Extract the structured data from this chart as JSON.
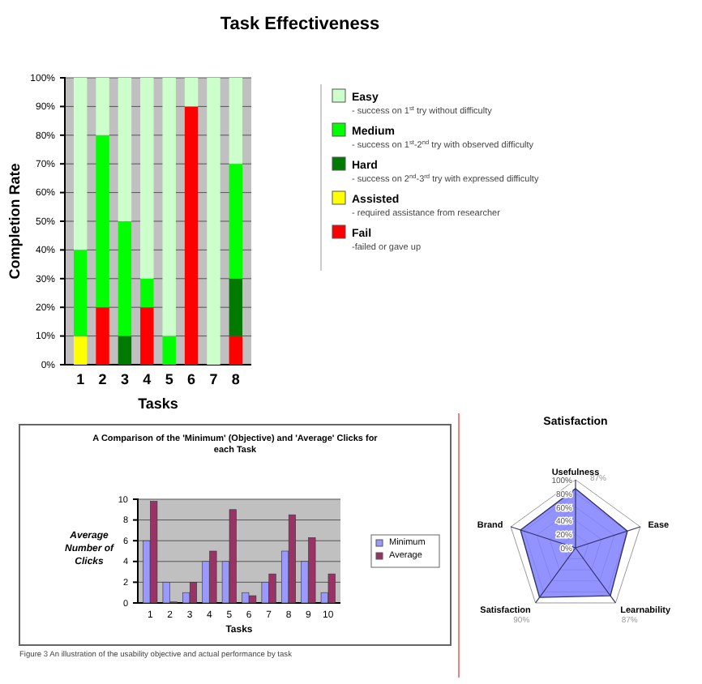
{
  "chart_data": [
    {
      "type": "bar",
      "title": "Task Effectiveness",
      "xlabel": "Tasks",
      "ylabel": "Completion Rate",
      "categories": [
        "1",
        "2",
        "3",
        "4",
        "5",
        "6",
        "7",
        "8"
      ],
      "stacked": true,
      "ylim": [
        0,
        100
      ],
      "yticks": [
        {
          "value": 0,
          "label": "0%"
        },
        {
          "value": 10,
          "label": "10%"
        },
        {
          "value": 20,
          "label": "20%"
        },
        {
          "value": 30,
          "label": "30%"
        },
        {
          "value": 40,
          "label": "40%"
        },
        {
          "value": 50,
          "label": "50%"
        },
        {
          "value": 60,
          "label": "60%"
        },
        {
          "value": 70,
          "label": "70%"
        },
        {
          "value": 80,
          "label": "80%"
        },
        {
          "value": 90,
          "label": "90%"
        },
        {
          "value": 100,
          "label": "100%"
        }
      ],
      "grid": "y",
      "legend": "right",
      "series": [
        {
          "name": "Fail",
          "color": "#ff0000",
          "values": [
            0,
            20,
            0,
            20,
            0,
            90,
            0,
            10
          ]
        },
        {
          "name": "Assisted",
          "color": "#ffff00",
          "values": [
            10,
            0,
            0,
            0,
            0,
            0,
            0,
            0
          ]
        },
        {
          "name": "Hard",
          "color": "#007a00",
          "values": [
            0,
            0,
            10,
            0,
            0,
            0,
            0,
            20
          ]
        },
        {
          "name": "Medium",
          "color": "#00ff00",
          "values": [
            30,
            60,
            40,
            10,
            10,
            0,
            0,
            40
          ]
        },
        {
          "name": "Easy",
          "color": "#ccffcc",
          "values": [
            60,
            20,
            50,
            70,
            90,
            10,
            100,
            30
          ]
        }
      ],
      "annotations": [
        "- success on 1$^{st}$ try without difficulty",
        "- success on 1$^{st}$-2$^{nd}$ try with observed difficulty",
        "- success on 2$^{nd}$-3$^{rd}$ try with expressed difficulty",
        "- required assistance from researcher",
        "-failed or gave up"
      ]
    },
    {
      "type": "bar",
      "title": "A Comparison of the 'Minimum' (Objective) and 'Average' Clicks for each Task",
      "xlabel": "Tasks",
      "ylabel": "Average Number of Clicks",
      "categories": [
        "1",
        "2",
        "3",
        "4",
        "5",
        "6",
        "7",
        "8",
        "9",
        "10"
      ],
      "ylim": [
        0,
        10
      ],
      "yticks": [
        0,
        2,
        4,
        6,
        8,
        10
      ],
      "grid": "y",
      "legend": "right",
      "series": [
        {
          "name": "Minimum",
          "color": "#9999ff",
          "values": [
            6,
            2,
            1,
            4,
            4,
            1,
            2,
            5,
            4,
            1
          ]
        },
        {
          "name": "Average",
          "color": "#993366",
          "values": [
            9.8,
            0.1,
            2,
            5,
            9,
            0.7,
            2.8,
            8.5,
            6.3,
            2.8
          ]
        }
      ],
      "annotations": [
        "Figure 3   An illustration of the usability objective and actual performance by task"
      ]
    },
    {
      "type": "radar",
      "title": "Satisfaction",
      "categories": [
        "Usefulness",
        "Ease",
        "Learnability",
        "Satisfaction",
        "Brand"
      ],
      "ylim": [
        0,
        100
      ],
      "yticks": [
        {
          "value": 0,
          "label": "0%"
        },
        {
          "value": 20,
          "label": "20%"
        },
        {
          "value": 40,
          "label": "40%"
        },
        {
          "value": 60,
          "label": "60%"
        },
        {
          "value": 80,
          "label": "80%"
        },
        {
          "value": 100,
          "label": "100%"
        }
      ],
      "series": [
        {
          "color": "#8080ff",
          "values": [
            87,
            80,
            87,
            90,
            85
          ],
          "value_labels": [
            "87%",
            null,
            "87%",
            "90%",
            null
          ]
        }
      ]
    }
  ]
}
